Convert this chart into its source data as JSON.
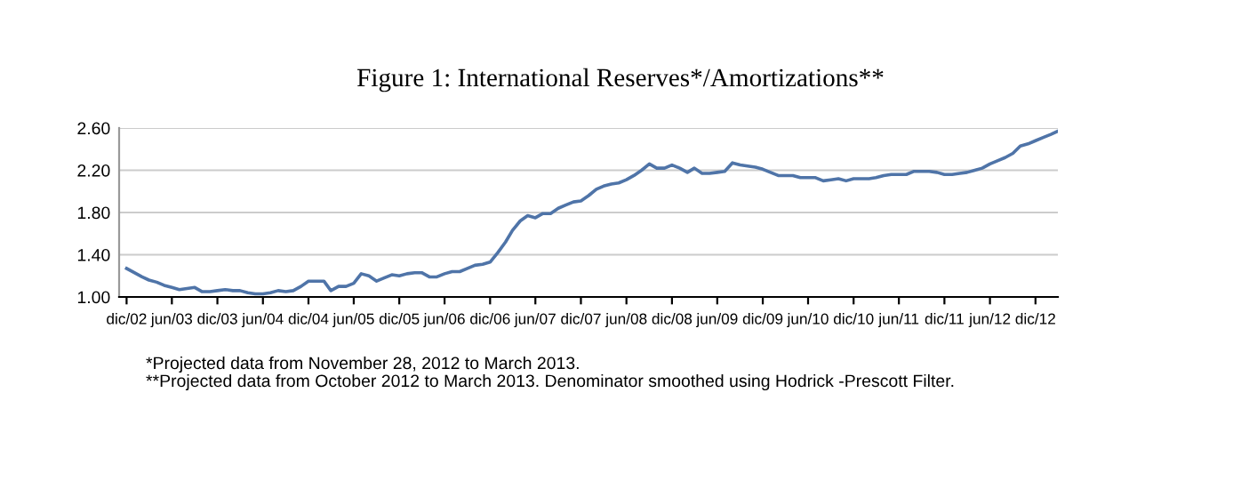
{
  "chart_data": {
    "type": "line",
    "title": "Figure 1: International Reserves*/Amortizations**",
    "x": [
      "2002-12",
      "2003-01",
      "2003-02",
      "2003-03",
      "2003-04",
      "2003-05",
      "2003-06",
      "2003-07",
      "2003-08",
      "2003-09",
      "2003-10",
      "2003-11",
      "2003-12",
      "2004-01",
      "2004-02",
      "2004-03",
      "2004-04",
      "2004-05",
      "2004-06",
      "2004-07",
      "2004-08",
      "2004-09",
      "2004-10",
      "2004-11",
      "2004-12",
      "2005-01",
      "2005-02",
      "2005-03",
      "2005-04",
      "2005-05",
      "2005-06",
      "2005-07",
      "2005-08",
      "2005-09",
      "2005-10",
      "2005-11",
      "2005-12",
      "2006-01",
      "2006-02",
      "2006-03",
      "2006-04",
      "2006-05",
      "2006-06",
      "2006-07",
      "2006-08",
      "2006-09",
      "2006-10",
      "2006-11",
      "2006-12",
      "2007-01",
      "2007-02",
      "2007-03",
      "2007-04",
      "2007-05",
      "2007-06",
      "2007-07",
      "2007-08",
      "2007-09",
      "2007-10",
      "2007-11",
      "2007-12",
      "2008-01",
      "2008-02",
      "2008-03",
      "2008-04",
      "2008-05",
      "2008-06",
      "2008-07",
      "2008-08",
      "2008-09",
      "2008-10",
      "2008-11",
      "2008-12",
      "2009-01",
      "2009-02",
      "2009-03",
      "2009-04",
      "2009-05",
      "2009-06",
      "2009-07",
      "2009-08",
      "2009-09",
      "2009-10",
      "2009-11",
      "2009-12",
      "2010-01",
      "2010-02",
      "2010-03",
      "2010-04",
      "2010-05",
      "2010-06",
      "2010-07",
      "2010-08",
      "2010-09",
      "2010-10",
      "2010-11",
      "2010-12",
      "2011-01",
      "2011-02",
      "2011-03",
      "2011-04",
      "2011-05",
      "2011-06",
      "2011-07",
      "2011-08",
      "2011-09",
      "2011-10",
      "2011-11",
      "2011-12",
      "2012-01",
      "2012-02",
      "2012-03",
      "2012-04",
      "2012-05",
      "2012-06",
      "2012-07",
      "2012-08",
      "2012-09",
      "2012-10",
      "2012-11",
      "2012-12",
      "2013-01",
      "2013-02",
      "2013-03"
    ],
    "series": [
      {
        "color": "#4f74a8",
        "values": [
          1.27,
          1.23,
          1.19,
          1.16,
          1.14,
          1.11,
          1.09,
          1.07,
          1.08,
          1.09,
          1.05,
          1.05,
          1.06,
          1.07,
          1.06,
          1.06,
          1.04,
          1.03,
          1.03,
          1.04,
          1.06,
          1.05,
          1.06,
          1.1,
          1.15,
          1.15,
          1.15,
          1.06,
          1.1,
          1.1,
          1.13,
          1.22,
          1.2,
          1.15,
          1.18,
          1.21,
          1.2,
          1.22,
          1.23,
          1.23,
          1.19,
          1.19,
          1.22,
          1.24,
          1.24,
          1.27,
          1.3,
          1.31,
          1.33,
          1.42,
          1.52,
          1.63,
          1.72,
          1.77,
          1.75,
          1.79,
          1.79,
          1.84,
          1.87,
          1.9,
          1.91,
          1.96,
          2.02,
          2.05,
          2.07,
          2.08,
          2.11,
          2.15,
          2.2,
          2.26,
          2.22,
          2.22,
          2.25,
          2.22,
          2.18,
          2.22,
          2.17,
          2.17,
          2.18,
          2.19,
          2.27,
          2.25,
          2.24,
          2.23,
          2.21,
          2.18,
          2.15,
          2.15,
          2.15,
          2.13,
          2.13,
          2.13,
          2.1,
          2.11,
          2.12,
          2.1,
          2.12,
          2.12,
          2.12,
          2.13,
          2.15,
          2.16,
          2.16,
          2.16,
          2.19,
          2.19,
          2.19,
          2.18,
          2.16,
          2.16,
          2.17,
          2.18,
          2.2,
          2.22,
          2.26,
          2.29,
          2.32,
          2.36,
          2.43,
          2.45,
          2.48,
          2.51,
          2.54,
          2.57
        ]
      }
    ],
    "xlim": [
      "2002-11",
      "2013-03"
    ],
    "xticks": [
      {
        "value": "2002-12",
        "label": "dic/02"
      },
      {
        "value": "2003-06",
        "label": "jun/03"
      },
      {
        "value": "2003-12",
        "label": "dic/03"
      },
      {
        "value": "2004-06",
        "label": "jun/04"
      },
      {
        "value": "2004-12",
        "label": "dic/04"
      },
      {
        "value": "2005-06",
        "label": "jun/05"
      },
      {
        "value": "2005-12",
        "label": "dic/05"
      },
      {
        "value": "2006-06",
        "label": "jun/06"
      },
      {
        "value": "2006-12",
        "label": "dic/06"
      },
      {
        "value": "2007-06",
        "label": "jun/07"
      },
      {
        "value": "2007-12",
        "label": "dic/07"
      },
      {
        "value": "2008-06",
        "label": "jun/08"
      },
      {
        "value": "2008-12",
        "label": "dic/08"
      },
      {
        "value": "2009-06",
        "label": "jun/09"
      },
      {
        "value": "2009-12",
        "label": "dic/09"
      },
      {
        "value": "2010-06",
        "label": "jun/10"
      },
      {
        "value": "2010-12",
        "label": "dic/10"
      },
      {
        "value": "2011-06",
        "label": "jun/11"
      },
      {
        "value": "2011-12",
        "label": "dic/11"
      },
      {
        "value": "2012-06",
        "label": "jun/12"
      },
      {
        "value": "2012-12",
        "label": "dic/12"
      }
    ],
    "ylim": [
      1.0,
      2.6
    ],
    "yticks": [
      {
        "value": 1.0,
        "label": "1.00"
      },
      {
        "value": 1.4,
        "label": "1.40"
      },
      {
        "value": 1.8,
        "label": "1.80"
      },
      {
        "value": 2.2,
        "label": "2.20"
      },
      {
        "value": 2.6,
        "label": "2.60"
      }
    ],
    "grid": "y",
    "legend": false,
    "marker": "none",
    "line_style": "solid",
    "annotations": [
      "*Projected data from November 28, 2012 to March 2013.",
      "**Projected data from October 2012 to March 2013. Denominator smoothed using Hodrick -Prescott Filter."
    ]
  }
}
